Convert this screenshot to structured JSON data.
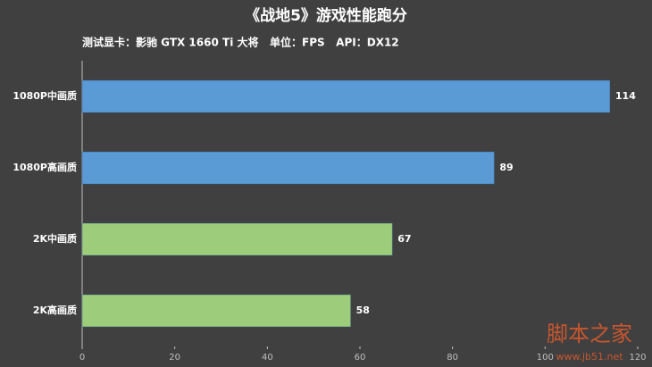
{
  "chart_data": {
    "type": "bar",
    "orientation": "horizontal",
    "title": "《战地5》游戏性能跑分",
    "subtitle": "测试显卡：影驰 GTX 1660 Ti 大将   单位：FPS   API：DX12",
    "categories": [
      "1080P中画质",
      "1080P高画质",
      "2K中画质",
      "2K高画质"
    ],
    "values": [
      114,
      89,
      67,
      58
    ],
    "colors": [
      "#5b9bd5",
      "#5b9bd5",
      "#9dcc7a",
      "#9dcc7a"
    ],
    "xlim": [
      0,
      120
    ],
    "xticks": [
      0,
      20,
      40,
      60,
      80,
      100,
      120
    ]
  },
  "watermark": {
    "text": "脚本之家",
    "url": "www.jb51.net"
  }
}
